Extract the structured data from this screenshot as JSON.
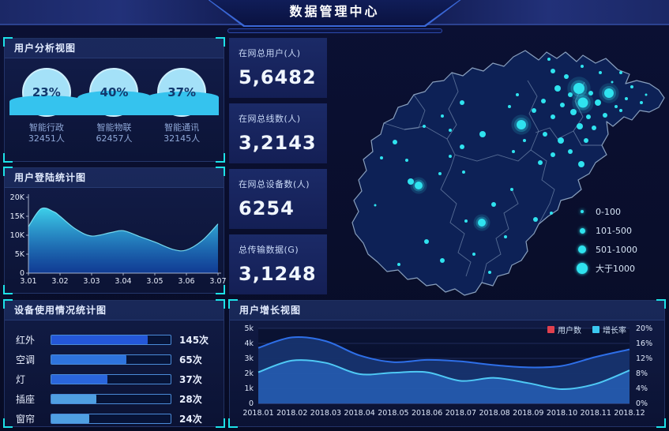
{
  "header": {
    "title": "数据管理中心"
  },
  "panels": {
    "user_analysis": {
      "title": "用户分析视图"
    },
    "login_stats": {
      "title": "用户登陆统计图"
    },
    "device_usage": {
      "title": "设备使用情况统计图"
    },
    "user_growth": {
      "title": "用户增长视图"
    }
  },
  "stats": [
    {
      "label": "在网总用户(人)",
      "value": "5,6482"
    },
    {
      "label": "在网总线数(人)",
      "value": "3,2143"
    },
    {
      "label": "在网总设备数(人)",
      "value": "6254"
    },
    {
      "label": "总传输数据(G)",
      "value": "3,1248"
    }
  ],
  "gauges": [
    {
      "pct": 23,
      "pct_label": "23%",
      "label": "智能行政",
      "count": "32451人"
    },
    {
      "pct": 40,
      "pct_label": "40%",
      "label": "智能物联",
      "count": "62457人"
    },
    {
      "pct": 37,
      "pct_label": "37%",
      "label": "智能通讯",
      "count": "32145人"
    }
  ],
  "colors": {
    "accent_cyan": "#1de2e8",
    "bubble": "#2fe3ef",
    "area_top": "#3fd9f2",
    "area_bottom": "#1250c4",
    "users_line": "#2e6fe8",
    "rate_line": "#4fc9f5",
    "users_swatch": "#e0404e",
    "rate_swatch": "#3bc8f0",
    "map_fill": "#0d2156",
    "map_border": "#9fb7d4"
  },
  "chart_data": [
    {
      "id": "login",
      "type": "area",
      "title": "用户登陆统计图",
      "categories": [
        "3.01",
        "3.02",
        "3.03",
        "3.04",
        "3.05",
        "3.06",
        "3.07"
      ],
      "values": [
        12.3,
        15.0,
        9.8,
        11.2,
        8.2,
        6.1,
        13.0
      ],
      "curve_points": [
        [
          0,
          12.3
        ],
        [
          0.4,
          17.0
        ],
        [
          0.8,
          16.2
        ],
        [
          1,
          15.0
        ],
        [
          1.5,
          11.6
        ],
        [
          2,
          9.8
        ],
        [
          2.6,
          10.7
        ],
        [
          3,
          11.2
        ],
        [
          3.5,
          9.7
        ],
        [
          4,
          8.2
        ],
        [
          4.6,
          6.2
        ],
        [
          5,
          6.1
        ],
        [
          5.5,
          8.6
        ],
        [
          6,
          13.0
        ]
      ],
      "yticks": [
        "0",
        "5K",
        "10K",
        "15K",
        "20K"
      ],
      "ytick_values": [
        0,
        5,
        10,
        15,
        20
      ],
      "ylim": [
        0,
        20
      ],
      "unit": "K",
      "grid": false
    },
    {
      "id": "device",
      "type": "bar",
      "orientation": "horizontal",
      "title": "设备使用情况统计图",
      "categories": [
        "红外",
        "空调",
        "灯",
        "插座",
        "窗帘"
      ],
      "values": [
        145,
        65,
        37,
        28,
        24
      ],
      "value_labels": [
        "145次",
        "65次",
        "37次",
        "28次",
        "24次"
      ],
      "bar_pcts": [
        81,
        63,
        47,
        38,
        32
      ],
      "bar_colors": [
        "#2457d8",
        "#2e74de",
        "#2a66dc",
        "#4f9fe2",
        "#4f9fe2"
      ]
    },
    {
      "id": "growth",
      "type": "area",
      "title": "用户增长视图",
      "categories": [
        "2018.01",
        "2018.02",
        "2018.03",
        "2018.04",
        "2018.05",
        "2018.06",
        "2018.07",
        "2018.08",
        "2018.09",
        "2018.10",
        "2018.11",
        "2018.12"
      ],
      "series": [
        {
          "name": "用户数",
          "axis": "left",
          "swatch": "#e0404e",
          "line": "#2e6fe8",
          "fill": "rgba(23,52,111,0.95)",
          "values": [
            3.7,
            4.4,
            4.15,
            3.2,
            2.75,
            2.9,
            2.8,
            2.55,
            2.4,
            2.5,
            3.1,
            3.6
          ]
        },
        {
          "name": "增长率",
          "axis": "right",
          "swatch": "#3bc8f0",
          "line": "#4fc9f5",
          "fill": "rgba(48,118,220,0.55)",
          "values": [
            8.3,
            11.4,
            10.8,
            7.8,
            8.2,
            8.3,
            6.0,
            6.8,
            5.4,
            3.8,
            5.2,
            8.8
          ]
        }
      ],
      "left_ticks": [
        "0",
        "1k",
        "2k",
        "3k",
        "4k",
        "5k"
      ],
      "left_lim": [
        0,
        5
      ],
      "right_ticks": [
        "0%",
        "4%",
        "8%",
        "12%",
        "16%",
        "20%"
      ],
      "right_lim": [
        0,
        20
      ],
      "grid": true,
      "legend_position": "top-right"
    },
    {
      "id": "gauges",
      "type": "pie",
      "title": "用户分析视图",
      "categories": [
        "智能行政",
        "智能物联",
        "智能通讯"
      ],
      "values": [
        23,
        40,
        37
      ],
      "counts": [
        "32451人",
        "62457人",
        "32145人"
      ]
    },
    {
      "id": "map_bubbles",
      "type": "scatter",
      "title": "",
      "legend": [
        {
          "label": "0-100",
          "r": 2
        },
        {
          "label": "101-500",
          "r": 3.5
        },
        {
          "label": "501-1000",
          "r": 5
        },
        {
          "label": "大于1000",
          "r": 7
        }
      ],
      "points": [
        [
          313,
          68,
          7,
          1
        ],
        [
          318,
          86,
          6.5,
          1
        ],
        [
          351,
          74,
          6,
          1
        ],
        [
          240,
          114,
          6,
          1
        ],
        [
          110,
          191,
          5,
          1
        ],
        [
          190,
          238,
          5,
          1
        ],
        [
          280,
          46,
          3
        ],
        [
          297,
          53,
          3
        ],
        [
          286,
          68,
          4
        ],
        [
          302,
          76,
          3
        ],
        [
          328,
          74,
          3
        ],
        [
          337,
          86,
          4
        ],
        [
          292,
          89,
          3
        ],
        [
          306,
          98,
          4
        ],
        [
          325,
          104,
          3
        ],
        [
          280,
          104,
          3
        ],
        [
          268,
          84,
          3
        ],
        [
          256,
          96,
          3
        ],
        [
          314,
          116,
          4
        ],
        [
          332,
          118,
          3
        ],
        [
          346,
          102,
          3
        ],
        [
          270,
          126,
          3
        ],
        [
          290,
          134,
          4
        ],
        [
          322,
          134,
          3
        ],
        [
          302,
          148,
          3
        ],
        [
          280,
          152,
          3
        ],
        [
          316,
          164,
          4
        ],
        [
          264,
          162,
          3
        ],
        [
          165,
          86,
          3
        ],
        [
          191,
          126,
          4
        ],
        [
          165,
          142,
          3
        ],
        [
          80,
          136,
          3
        ],
        [
          100,
          186,
          4
        ],
        [
          258,
          234,
          3
        ],
        [
          140,
          286,
          3
        ],
        [
          275,
          31,
          2
        ],
        [
          317,
          40,
          2
        ],
        [
          340,
          48,
          2
        ],
        [
          366,
          48,
          2
        ],
        [
          380,
          66,
          2
        ],
        [
          392,
          86,
          2
        ],
        [
          373,
          81,
          2
        ],
        [
          360,
          91,
          2
        ],
        [
          366,
          96,
          2
        ],
        [
          235,
          76,
          2
        ],
        [
          225,
          91,
          2
        ],
        [
          244,
          134,
          2
        ],
        [
          230,
          148,
          2
        ],
        [
          398,
          76,
          1.5
        ],
        [
          355,
          60,
          1.5
        ],
        [
          140,
          103,
          2
        ],
        [
          117,
          116,
          2
        ],
        [
          150,
          121,
          2
        ],
        [
          150,
          154,
          2
        ],
        [
          63,
          156,
          2
        ],
        [
          137,
          176,
          2
        ],
        [
          167,
          174,
          2
        ],
        [
          95,
          159,
          2
        ],
        [
          228,
          196,
          2
        ],
        [
          205,
          215,
          3
        ],
        [
          170,
          236,
          2
        ],
        [
          220,
          256,
          2
        ],
        [
          278,
          226,
          2
        ],
        [
          180,
          278,
          2
        ],
        [
          200,
          301,
          2
        ],
        [
          120,
          262,
          3
        ],
        [
          85,
          291,
          2
        ],
        [
          55,
          216,
          1.5
        ]
      ]
    }
  ]
}
